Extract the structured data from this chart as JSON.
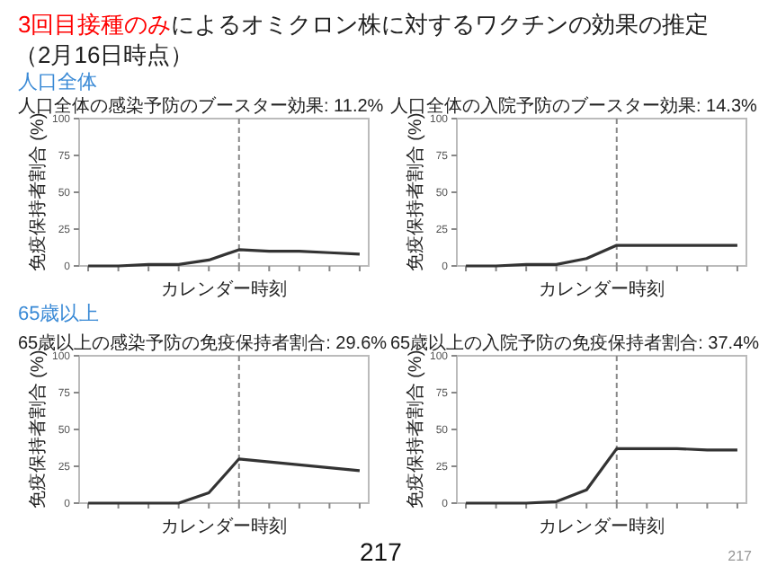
{
  "chart_data": [
    {
      "type": "line",
      "title": "人口全体の感染予防のブースター効果: 11.2%",
      "xlabel": "カレンダー時刻",
      "ylabel": "免疫保持者割合 (%)",
      "categories": [
        null,
        null,
        null,
        null,
        null,
        null,
        null,
        null,
        null,
        null
      ],
      "series": [
        {
          "color": "#333333",
          "values": [
            0,
            0,
            1,
            1,
            4,
            11,
            10,
            10,
            9,
            8
          ]
        }
      ],
      "ylim": [
        0,
        100
      ],
      "yticks": [
        0,
        25,
        50,
        75,
        100
      ],
      "annotations": [
        "3回目接種のみ",
        "によるオミクロン株に対するワクチンの効果の推定",
        "（2月16日時点）",
        "人口全体"
      ]
    },
    {
      "type": "line",
      "title": "人口全体の入院予防のブースター効果: 14.3%",
      "xlabel": "カレンダー時刻",
      "ylabel": "免疫保持者割合 (%)",
      "categories": [
        null,
        null,
        null,
        null,
        null,
        null,
        null,
        null,
        null,
        null
      ],
      "series": [
        {
          "color": "#333333",
          "values": [
            0,
            0,
            1,
            1,
            5,
            14,
            14,
            14,
            14,
            14
          ]
        }
      ],
      "ylim": [
        0,
        100
      ],
      "yticks": [
        0,
        25,
        50,
        75,
        100
      ]
    },
    {
      "type": "line",
      "title": "65歳以上の感染予防の免疫保持者割合: 29.6%",
      "xlabel": "カレンダー時刻",
      "ylabel": "免疫保持者割合 (%)",
      "categories": [
        null,
        null,
        null,
        null,
        null,
        null,
        null,
        null,
        null,
        null
      ],
      "series": [
        {
          "color": "#333333",
          "values": [
            0,
            0,
            0,
            0,
            7,
            30,
            28,
            26,
            24,
            22
          ]
        }
      ],
      "ylim": [
        0,
        100
      ],
      "yticks": [
        0,
        25,
        50,
        75,
        100
      ],
      "annotations": [
        "65歳以上"
      ]
    },
    {
      "type": "line",
      "title": "65歳以上の入院予防の免疫保持者割合: 37.4%",
      "xlabel": "カレンダー時刻",
      "ylabel": "免疫保持者割合 (%)",
      "categories": [
        null,
        null,
        null,
        null,
        null,
        null,
        null,
        null,
        null,
        null
      ],
      "series": [
        {
          "color": "#333333",
          "values": [
            0,
            0,
            0,
            1,
            9,
            37,
            37,
            37,
            36,
            36
          ]
        }
      ],
      "ylim": [
        0,
        100
      ],
      "yticks": [
        0,
        25,
        50,
        75,
        100
      ],
      "annotations": [
        "217",
        "217"
      ]
    }
  ]
}
